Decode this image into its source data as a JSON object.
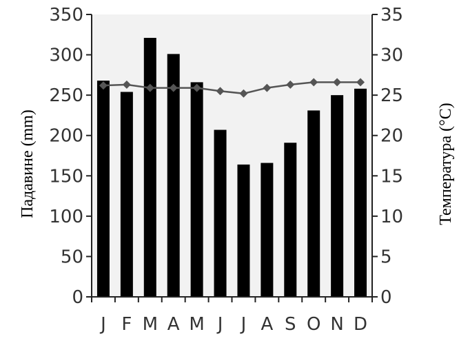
{
  "chart_data": {
    "type": "bar+line",
    "categories": [
      "J",
      "F",
      "M",
      "A",
      "M",
      "J",
      "J",
      "A",
      "S",
      "O",
      "N",
      "D"
    ],
    "series": [
      {
        "values": [
          268,
          254,
          321,
          301,
          266,
          207,
          164,
          166,
          191,
          231,
          250,
          258
        ],
        "axis": "left",
        "kind": "bar",
        "color": "#000000"
      },
      {
        "values": [
          26.2,
          26.3,
          25.9,
          25.9,
          25.9,
          25.5,
          25.2,
          25.9,
          26.3,
          26.6,
          26.6,
          26.6
        ],
        "axis": "right",
        "kind": "line",
        "marker": "diamond",
        "color": "#555555"
      }
    ],
    "y_left": {
      "label": "Падавине (mm)",
      "range": [
        0,
        350
      ],
      "ticks": [
        "0",
        "50",
        "100",
        "150",
        "200",
        "250",
        "300",
        "350"
      ]
    },
    "y_right": {
      "label": "Температура (°C)",
      "range": [
        0,
        35
      ],
      "ticks": [
        "0",
        "5",
        "10",
        "15",
        "20",
        "25",
        "30",
        "35"
      ]
    },
    "grid": false,
    "plot_background": "#f2f2f2"
  }
}
